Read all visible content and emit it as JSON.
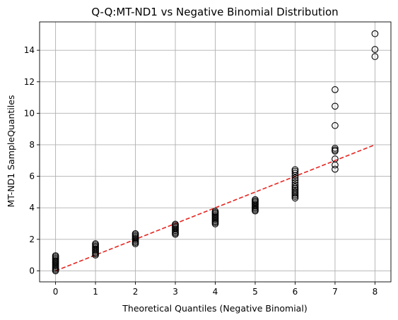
{
  "chart_data": {
    "type": "scatter",
    "title": "Q-Q:MT-ND1 vs Negative Binomial Distribution",
    "xlabel": "Theoretical Quantiles (Negative Binomial)",
    "ylabel": "MT-ND1 SampleQuantiles",
    "xlim": [
      -0.4,
      8.4
    ],
    "ylim": [
      -0.7,
      15.8
    ],
    "x_ticks": [
      0,
      1,
      2,
      3,
      4,
      5,
      6,
      7,
      8
    ],
    "y_ticks": [
      0,
      2,
      4,
      6,
      8,
      10,
      12,
      14
    ],
    "grid": true,
    "series": [
      {
        "marker": "open-circle",
        "color": "#000000",
        "points": [
          [
            0,
            0.0
          ],
          [
            0,
            0.08
          ],
          [
            0,
            0.16
          ],
          [
            0,
            0.24
          ],
          [
            0,
            0.32
          ],
          [
            0,
            0.4
          ],
          [
            0,
            0.48
          ],
          [
            0,
            0.56
          ],
          [
            0,
            0.64
          ],
          [
            0,
            0.72
          ],
          [
            0,
            0.8
          ],
          [
            0,
            0.88
          ],
          [
            0,
            0.96
          ],
          [
            1,
            1.0
          ],
          [
            1,
            1.08
          ],
          [
            1,
            1.16
          ],
          [
            1,
            1.24
          ],
          [
            1,
            1.32
          ],
          [
            1,
            1.4
          ],
          [
            1,
            1.48
          ],
          [
            1,
            1.56
          ],
          [
            1,
            1.64
          ],
          [
            1,
            1.72
          ],
          [
            2,
            1.72
          ],
          [
            2,
            1.8
          ],
          [
            2,
            1.88
          ],
          [
            2,
            1.96
          ],
          [
            2,
            2.04
          ],
          [
            2,
            2.12
          ],
          [
            2,
            2.2
          ],
          [
            2,
            2.28
          ],
          [
            2,
            2.36
          ],
          [
            3,
            2.32
          ],
          [
            3,
            2.4
          ],
          [
            3,
            2.48
          ],
          [
            3,
            2.56
          ],
          [
            3,
            2.64
          ],
          [
            3,
            2.72
          ],
          [
            3,
            2.8
          ],
          [
            3,
            2.88
          ],
          [
            3,
            2.96
          ],
          [
            4,
            2.98
          ],
          [
            4,
            3.06
          ],
          [
            4,
            3.14
          ],
          [
            4,
            3.22
          ],
          [
            4,
            3.3
          ],
          [
            4,
            3.38
          ],
          [
            4,
            3.46
          ],
          [
            4,
            3.54
          ],
          [
            4,
            3.62
          ],
          [
            4,
            3.7
          ],
          [
            4,
            3.78
          ],
          [
            5,
            3.8
          ],
          [
            5,
            3.88
          ],
          [
            5,
            3.96
          ],
          [
            5,
            4.04
          ],
          [
            5,
            4.12
          ],
          [
            5,
            4.2
          ],
          [
            5,
            4.28
          ],
          [
            5,
            4.36
          ],
          [
            5,
            4.44
          ],
          [
            5,
            4.52
          ],
          [
            6,
            4.62
          ],
          [
            6,
            4.72
          ],
          [
            6,
            4.82
          ],
          [
            6,
            4.92
          ],
          [
            6,
            5.02
          ],
          [
            6,
            5.12
          ],
          [
            6,
            5.22
          ],
          [
            6,
            5.32
          ],
          [
            6,
            5.45
          ],
          [
            6,
            5.6
          ],
          [
            6,
            5.75
          ],
          [
            6,
            5.9
          ],
          [
            6,
            6.05
          ],
          [
            6,
            6.2
          ],
          [
            6,
            6.32
          ],
          [
            6,
            6.42
          ],
          [
            7,
            6.45
          ],
          [
            7,
            6.72
          ],
          [
            7,
            7.1
          ],
          [
            7,
            7.6
          ],
          [
            7,
            7.68
          ],
          [
            7,
            7.78
          ],
          [
            7,
            9.22
          ],
          [
            7,
            10.45
          ],
          [
            7,
            11.5
          ],
          [
            8,
            13.6
          ],
          [
            8,
            14.05
          ],
          [
            8,
            15.05
          ]
        ]
      }
    ],
    "reference_line": {
      "style": "dashed",
      "color": "#e8241f",
      "from": [
        0,
        0
      ],
      "to": [
        8,
        8
      ]
    }
  }
}
